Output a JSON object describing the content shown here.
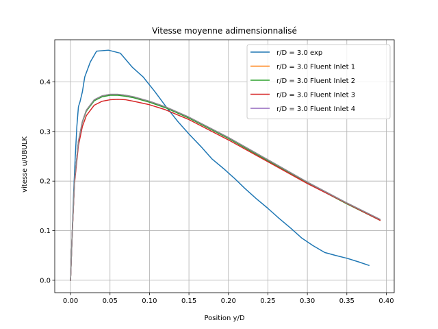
{
  "chart_data": {
    "type": "line",
    "title": "Vitesse moyenne adimensionnalisé",
    "xlabel": "Position y/D",
    "ylabel": "vitesse u/UBULK",
    "xlim": [
      -0.02,
      0.41
    ],
    "ylim": [
      -0.025,
      0.485
    ],
    "xticks": [
      0.0,
      0.05,
      0.1,
      0.15,
      0.2,
      0.25,
      0.3,
      0.35,
      0.4
    ],
    "xtick_labels": [
      "0.00",
      "0.05",
      "0.10",
      "0.15",
      "0.20",
      "0.25",
      "0.30",
      "0.35",
      "0.40"
    ],
    "yticks": [
      0.0,
      0.1,
      0.2,
      0.3,
      0.4
    ],
    "ytick_labels": [
      "0.0",
      "0.1",
      "0.2",
      "0.3",
      "0.4"
    ],
    "grid": true,
    "legend_position": "top-right",
    "series": [
      {
        "name": "r/D = 3.0 exp",
        "color": "#1f77b4",
        "x": [
          0.0,
          0.002,
          0.004,
          0.006,
          0.008,
          0.01,
          0.012,
          0.015,
          0.018,
          0.025,
          0.033,
          0.048,
          0.063,
          0.078,
          0.092,
          0.107,
          0.121,
          0.136,
          0.15,
          0.165,
          0.179,
          0.194,
          0.208,
          0.221,
          0.235,
          0.25,
          0.264,
          0.279,
          0.293,
          0.307,
          0.322,
          0.336,
          0.351,
          0.365,
          0.378
        ],
        "y": [
          0.0,
          0.09,
          0.18,
          0.25,
          0.31,
          0.35,
          0.36,
          0.38,
          0.41,
          0.44,
          0.462,
          0.464,
          0.458,
          0.43,
          0.41,
          0.38,
          0.35,
          0.32,
          0.295,
          0.27,
          0.245,
          0.225,
          0.205,
          0.185,
          0.165,
          0.145,
          0.125,
          0.105,
          0.085,
          0.07,
          0.056,
          0.05,
          0.044,
          0.037,
          0.03
        ]
      },
      {
        "name": "r/D = 3.0 Fluent Inlet 1",
        "color": "#ff7f0e",
        "x": [
          0.0,
          0.002,
          0.005,
          0.01,
          0.015,
          0.02,
          0.03,
          0.04,
          0.05,
          0.06,
          0.07,
          0.08,
          0.1,
          0.12,
          0.15,
          0.2,
          0.25,
          0.3,
          0.35,
          0.392
        ],
        "y": [
          0.0,
          0.09,
          0.2,
          0.28,
          0.32,
          0.342,
          0.363,
          0.371,
          0.374,
          0.374,
          0.372,
          0.369,
          0.36,
          0.349,
          0.328,
          0.287,
          0.242,
          0.197,
          0.155,
          0.122
        ],
        "z": 1
      },
      {
        "name": "r/D = 3.0 Fluent Inlet 2",
        "color": "#2ca02c",
        "x": [
          0.0,
          0.002,
          0.005,
          0.01,
          0.015,
          0.02,
          0.03,
          0.04,
          0.05,
          0.06,
          0.07,
          0.08,
          0.1,
          0.12,
          0.15,
          0.2,
          0.25,
          0.3,
          0.35,
          0.392
        ],
        "y": [
          0.0,
          0.09,
          0.2,
          0.279,
          0.319,
          0.341,
          0.362,
          0.37,
          0.373,
          0.373,
          0.371,
          0.368,
          0.359,
          0.348,
          0.327,
          0.286,
          0.241,
          0.196,
          0.154,
          0.121
        ]
      },
      {
        "name": "r/D = 3.0 Fluent Inlet 3",
        "color": "#d62728",
        "x": [
          0.0,
          0.002,
          0.005,
          0.01,
          0.015,
          0.02,
          0.03,
          0.04,
          0.05,
          0.06,
          0.07,
          0.08,
          0.1,
          0.12,
          0.15,
          0.2,
          0.25,
          0.3,
          0.35,
          0.392
        ],
        "y": [
          0.0,
          0.088,
          0.195,
          0.272,
          0.31,
          0.332,
          0.353,
          0.361,
          0.364,
          0.365,
          0.364,
          0.361,
          0.354,
          0.344,
          0.324,
          0.283,
          0.239,
          0.195,
          0.155,
          0.121
        ]
      },
      {
        "name": "r/D = 3.0 Fluent Inlet 4",
        "color": "#9467bd",
        "x": [
          0.0,
          0.002,
          0.005,
          0.01,
          0.015,
          0.02,
          0.03,
          0.04,
          0.05,
          0.06,
          0.07,
          0.08,
          0.1,
          0.12,
          0.15,
          0.2,
          0.25,
          0.3,
          0.35,
          0.392
        ],
        "y": [
          0.0,
          0.09,
          0.201,
          0.28,
          0.32,
          0.343,
          0.364,
          0.372,
          0.375,
          0.375,
          0.373,
          0.37,
          0.361,
          0.35,
          0.329,
          0.288,
          0.243,
          0.198,
          0.156,
          0.123
        ]
      }
    ],
    "overlay_series": {
      "name": "",
      "color": "#8c8c8c",
      "x": [
        0.0,
        0.002,
        0.005,
        0.01,
        0.015,
        0.02,
        0.03,
        0.04,
        0.05,
        0.06,
        0.07,
        0.08,
        0.1,
        0.12,
        0.15,
        0.2,
        0.25,
        0.3,
        0.35,
        0.392
      ],
      "y": [
        0.0,
        0.09,
        0.201,
        0.28,
        0.32,
        0.343,
        0.364,
        0.372,
        0.375,
        0.375,
        0.373,
        0.37,
        0.361,
        0.35,
        0.329,
        0.288,
        0.243,
        0.198,
        0.156,
        0.123
      ]
    }
  }
}
